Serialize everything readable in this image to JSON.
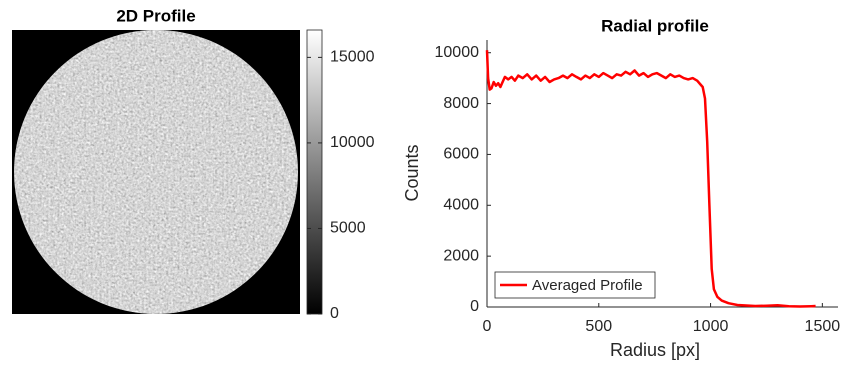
{
  "chart_data": [
    {
      "type": "image",
      "title": "2D Profile",
      "colormap": "gray",
      "clim": [
        0,
        16600
      ],
      "cticks": [
        0,
        5000,
        10000,
        15000
      ]
    },
    {
      "type": "line",
      "title": "Radial profile",
      "xlabel": "Radius [px]",
      "ylabel": "Counts",
      "xlim": [
        0,
        1570
      ],
      "ylim": [
        0,
        10500
      ],
      "xticks": [
        0,
        500,
        1000,
        1500
      ],
      "yticks": [
        0,
        2000,
        4000,
        6000,
        8000,
        10000
      ],
      "legend": "lower left",
      "x": [
        0,
        5,
        12,
        20,
        30,
        40,
        50,
        60,
        70,
        80,
        95,
        110,
        125,
        140,
        160,
        180,
        200,
        220,
        240,
        260,
        280,
        300,
        320,
        340,
        360,
        380,
        400,
        420,
        440,
        460,
        480,
        500,
        520,
        540,
        560,
        580,
        600,
        620,
        640,
        660,
        680,
        700,
        720,
        740,
        760,
        780,
        800,
        820,
        840,
        860,
        880,
        900,
        920,
        940,
        955,
        965,
        975,
        985,
        995,
        1005,
        1015,
        1030,
        1050,
        1080,
        1120,
        1160,
        1200,
        1250,
        1300,
        1350,
        1400,
        1450,
        1470
      ],
      "series": [
        {
          "name": "Averaged Profile",
          "color": "#ff0000",
          "values": [
            10100,
            9000,
            8550,
            8600,
            8850,
            8700,
            8800,
            8650,
            8850,
            9050,
            8950,
            9050,
            8900,
            9100,
            9000,
            9150,
            8950,
            9100,
            8900,
            9050,
            8850,
            8950,
            9000,
            9100,
            9000,
            9150,
            9050,
            8950,
            9100,
            9000,
            9150,
            9050,
            9200,
            9100,
            9000,
            9150,
            9100,
            9250,
            9150,
            9300,
            9100,
            9200,
            9050,
            9150,
            9200,
            9100,
            9000,
            9150,
            9050,
            9100,
            9000,
            8950,
            9000,
            8900,
            8750,
            8650,
            8200,
            6500,
            4000,
            1500,
            700,
            400,
            250,
            150,
            80,
            60,
            40,
            50,
            70,
            30,
            20,
            30,
            40
          ]
        }
      ]
    }
  ]
}
